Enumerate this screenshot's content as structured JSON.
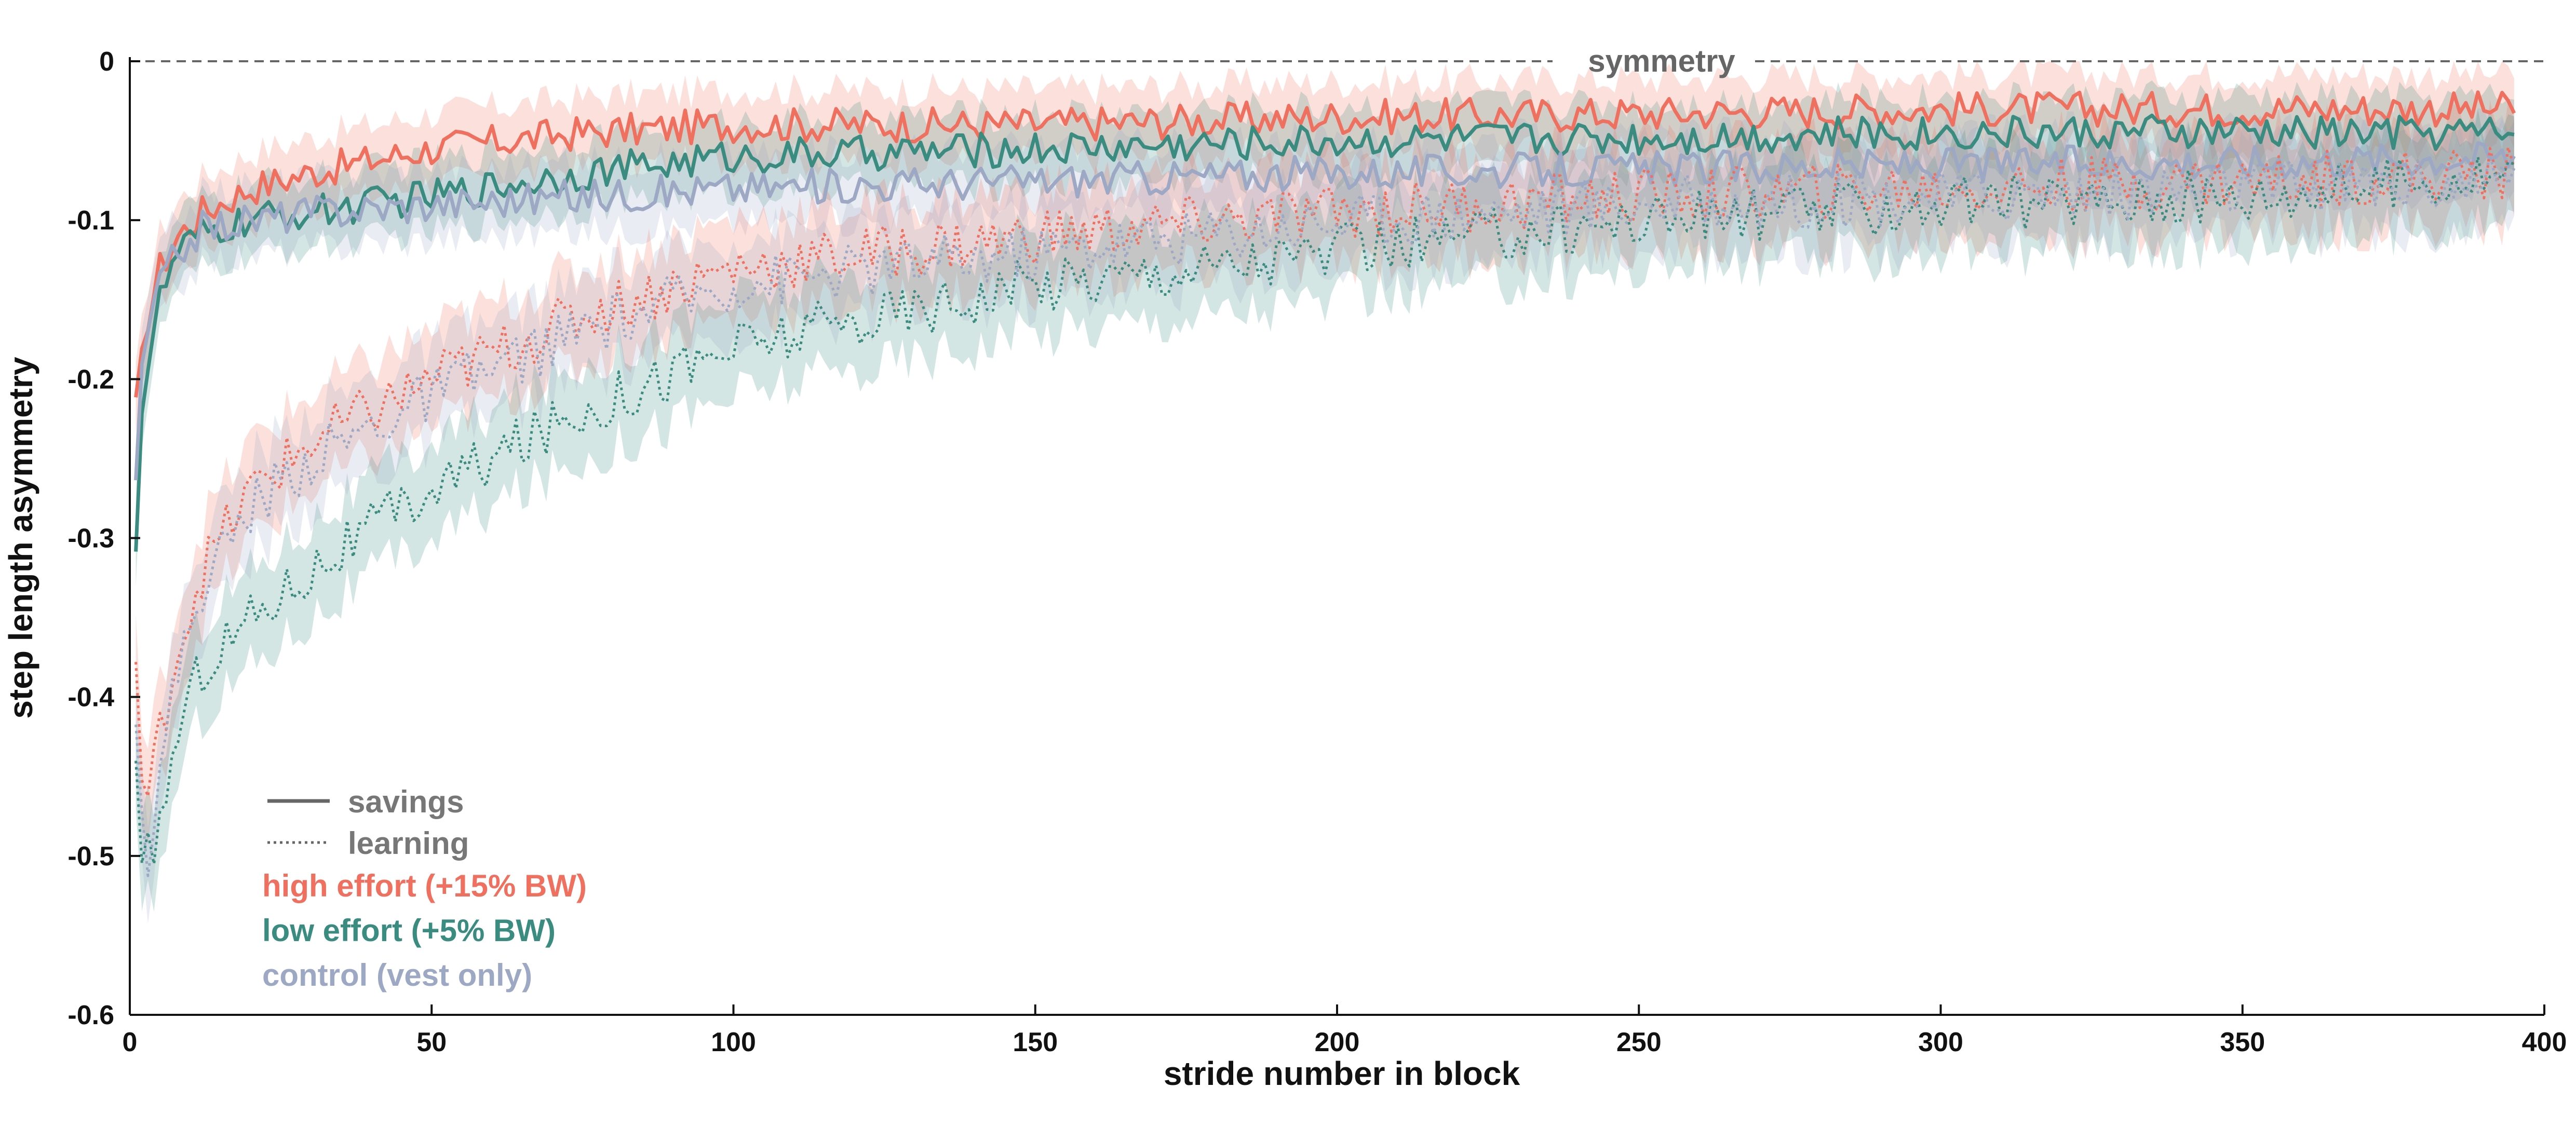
{
  "chart_data": {
    "type": "line",
    "xlabel": "stride number in block",
    "ylabel": "step length asymmetry",
    "xlim": [
      0,
      400
    ],
    "ylim": [
      -0.6,
      0
    ],
    "xticks": [
      "0",
      "50",
      "100",
      "150",
      "200",
      "250",
      "300",
      "350",
      "400"
    ],
    "yticks": [
      "0",
      "-0.1",
      "-0.2",
      "-0.3",
      "-0.4",
      "-0.5",
      "-0.6"
    ],
    "grid": false,
    "legend_placement": "bottom-left",
    "reference_line": {
      "y": 0,
      "label": "symmetry",
      "style": "dashed"
    },
    "line_styles": [
      {
        "name": "savings",
        "dash": "solid"
      },
      {
        "name": "learning",
        "dash": "dotted"
      }
    ],
    "groups": [
      {
        "name": "high effort (+15% BW)",
        "color": "#f07060"
      },
      {
        "name": "low effort (+5% BW)",
        "color": "#3a8c80"
      },
      {
        "name": "control (vest only)",
        "color": "#9ca8c4"
      }
    ],
    "x": [
      1,
      2,
      3,
      5,
      8,
      12,
      20,
      30,
      50,
      75,
      100,
      150,
      200,
      250,
      300,
      350,
      395
    ],
    "series": [
      {
        "name": "high effort (+15% BW)",
        "style": "savings",
        "values": [
          -0.22,
          -0.19,
          -0.16,
          -0.13,
          -0.11,
          -0.095,
          -0.08,
          -0.07,
          -0.055,
          -0.045,
          -0.04,
          -0.04,
          -0.035,
          -0.033,
          -0.03,
          -0.03,
          -0.03
        ]
      },
      {
        "name": "low effort (+5% BW)",
        "style": "savings",
        "values": [
          -0.3,
          -0.22,
          -0.19,
          -0.15,
          -0.12,
          -0.11,
          -0.1,
          -0.095,
          -0.085,
          -0.07,
          -0.06,
          -0.055,
          -0.05,
          -0.048,
          -0.045,
          -0.045,
          -0.045
        ]
      },
      {
        "name": "control (vest only)",
        "style": "savings",
        "values": [
          -0.26,
          -0.2,
          -0.17,
          -0.14,
          -0.12,
          -0.105,
          -0.1,
          -0.095,
          -0.09,
          -0.085,
          -0.08,
          -0.075,
          -0.07,
          -0.068,
          -0.065,
          -0.063,
          -0.06
        ]
      },
      {
        "name": "high effort (+15% BW)",
        "style": "learning",
        "values": [
          -0.38,
          -0.45,
          -0.47,
          -0.42,
          -0.37,
          -0.32,
          -0.27,
          -0.24,
          -0.2,
          -0.16,
          -0.13,
          -0.11,
          -0.095,
          -0.085,
          -0.08,
          -0.075,
          -0.07
        ]
      },
      {
        "name": "low effort (+5% BW)",
        "style": "learning",
        "values": [
          -0.45,
          -0.52,
          -0.5,
          -0.48,
          -0.42,
          -0.38,
          -0.35,
          -0.32,
          -0.27,
          -0.22,
          -0.18,
          -0.14,
          -0.12,
          -0.1,
          -0.09,
          -0.085,
          -0.07
        ]
      },
      {
        "name": "control (vest only)",
        "style": "learning",
        "values": [
          -0.4,
          -0.47,
          -0.5,
          -0.45,
          -0.38,
          -0.33,
          -0.28,
          -0.25,
          -0.21,
          -0.17,
          -0.14,
          -0.12,
          -0.1,
          -0.09,
          -0.085,
          -0.08,
          -0.075
        ]
      }
    ]
  }
}
